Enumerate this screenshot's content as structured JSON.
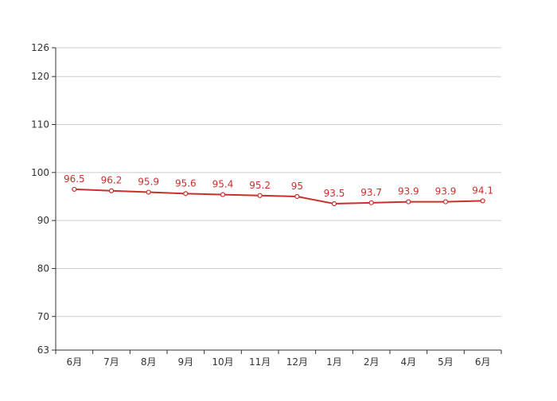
{
  "chart_data": {
    "type": "line",
    "title": "",
    "xlabel": "",
    "ylabel": "",
    "categories": [
      "6月",
      "7月",
      "8月",
      "9月",
      "10月",
      "11月",
      "12月",
      "1月",
      "2月",
      "4月",
      "5月",
      "6月"
    ],
    "series": [
      {
        "values": [
          96.5,
          96.2,
          95.9,
          95.6,
          95.4,
          95.2,
          95,
          93.5,
          93.7,
          93.9,
          93.9,
          94.1
        ],
        "color": "#c9302c"
      }
    ],
    "ylim": [
      63,
      126
    ],
    "yticks": [
      63,
      70,
      80,
      90,
      100,
      110,
      120,
      126
    ],
    "grid": true,
    "legend": "none",
    "data_labels": true,
    "colors": {
      "grid": "#cccccc",
      "axis": "#333333",
      "line": "#c9302c",
      "label": "#c9302c",
      "point_fill": "#ffffff"
    }
  }
}
